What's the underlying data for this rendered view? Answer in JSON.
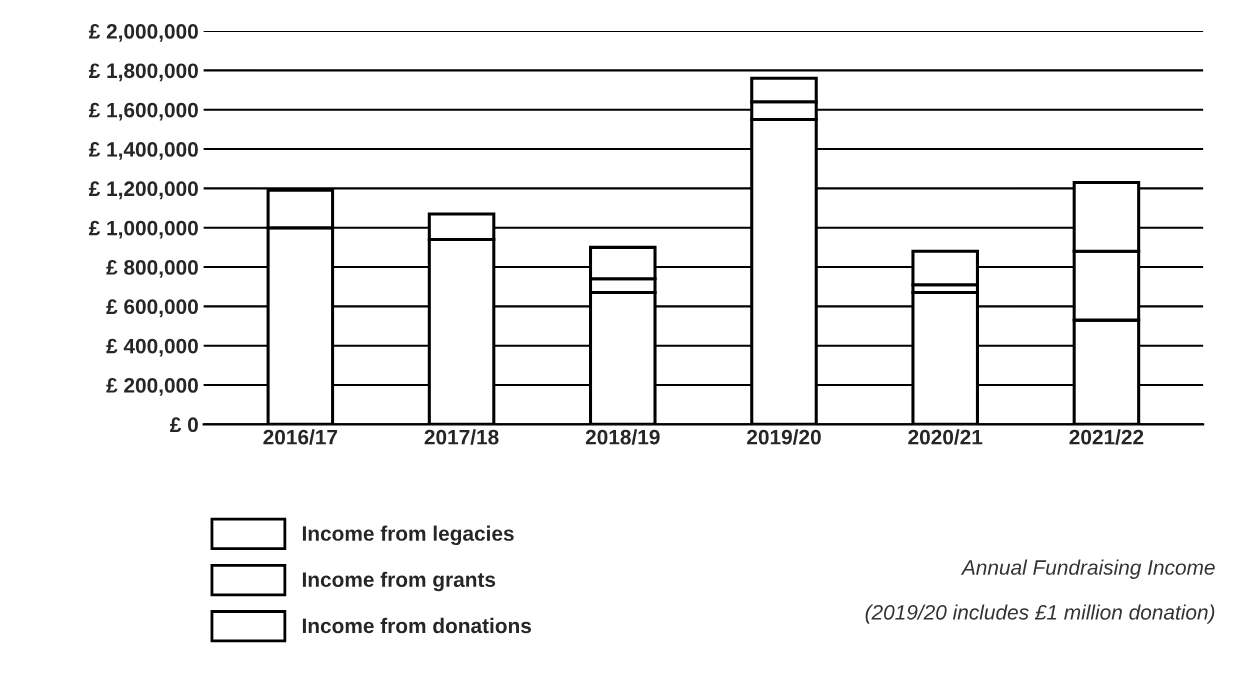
{
  "chart_data": {
    "type": "bar",
    "stacked": true,
    "categories": [
      "2016/17",
      "2017/18",
      "2018/19",
      "2019/20",
      "2020/21",
      "2021/22"
    ],
    "series": [
      {
        "name": "Income from donations",
        "color": "#ffffff",
        "values": [
          1000000,
          940000,
          670000,
          1550000,
          670000,
          530000
        ]
      },
      {
        "name": "Income from grants",
        "color": "#ffffff",
        "values": [
          0,
          0,
          70000,
          90000,
          40000,
          350000
        ]
      },
      {
        "name": "Income from legacies",
        "color": "#ffffff",
        "values": [
          190000,
          130000,
          160000,
          120000,
          170000,
          350000
        ]
      }
    ],
    "ylim": [
      0,
      2000000
    ],
    "yticks": [
      {
        "value": 0,
        "label": "£ 0"
      },
      {
        "value": 200000,
        "label": "£ 200,000"
      },
      {
        "value": 400000,
        "label": "£ 400,000"
      },
      {
        "value": 600000,
        "label": "£ 600,000"
      },
      {
        "value": 800000,
        "label": "£ 800,000"
      },
      {
        "value": 1000000,
        "label": "£ 1,000,000"
      },
      {
        "value": 1200000,
        "label": "£ 1,200,000"
      },
      {
        "value": 1400000,
        "label": "£ 1,400,000"
      },
      {
        "value": 1600000,
        "label": "£ 1,600,000"
      },
      {
        "value": 1800000,
        "label": "£ 1,800,000"
      },
      {
        "value": 2000000,
        "label": "£ 2,000,000"
      }
    ],
    "grid": "y",
    "legend": "bottom left",
    "annotations": [
      "Annual Fundraising Income",
      "(2019/20 includes £1 million donation)"
    ]
  }
}
